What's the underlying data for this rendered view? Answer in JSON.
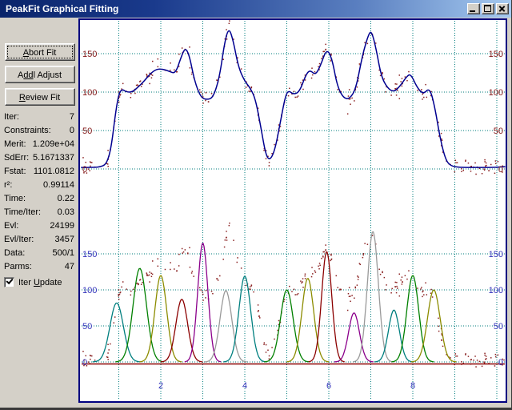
{
  "window": {
    "title": "PeakFit Graphical Fitting",
    "controls": [
      "minimize",
      "maximize",
      "close"
    ]
  },
  "toolbar": {
    "abort": {
      "pre": "",
      "mn": "A",
      "post": "bort Fit"
    },
    "addl": {
      "pre": "A",
      "mn": "dd",
      "post": "l Adjust"
    },
    "review": {
      "pre": "",
      "mn": "R",
      "post": "eview Fit"
    }
  },
  "stats": {
    "rows": [
      {
        "label": "Iter:",
        "value": "7"
      },
      {
        "label": "Constraints:",
        "value": "0"
      },
      {
        "label": "Merit:",
        "value": "1.209e+04"
      },
      {
        "label": "SdErr:",
        "value": "5.1671337"
      },
      {
        "label": "Fstat:",
        "value": "1101.0812"
      },
      {
        "label": "r²:",
        "value": "0.99114"
      },
      {
        "label": "Time:",
        "value": "0.22"
      },
      {
        "label": "Time/Iter:",
        "value": "0.03"
      },
      {
        "label": "Evl:",
        "value": "24199"
      },
      {
        "label": "Evl/Iter:",
        "value": "3457"
      },
      {
        "label": "Data:",
        "value": "500/1"
      },
      {
        "label": "Parms:",
        "value": "47"
      }
    ]
  },
  "iter_update": {
    "pre": "Iter ",
    "mn": "U",
    "post": "pdate",
    "checked": true
  },
  "chart_data": {
    "type": "line",
    "x_axis": {
      "min": 0.1,
      "max": 10.2,
      "gridlines": [
        1,
        2,
        3,
        4,
        5,
        6,
        7,
        8,
        9,
        10
      ],
      "tick_labels": [
        {
          "x": 2,
          "label": "2"
        },
        {
          "x": 4,
          "label": "4"
        },
        {
          "x": 6,
          "label": "6"
        },
        {
          "x": 8,
          "label": "8"
        }
      ],
      "label_color": "#3333bb"
    },
    "grid_color": "#007c7c",
    "scatter": {
      "color": "#8b2222",
      "n_points": 290,
      "noise_sd": 5.2,
      "seed": 11
    },
    "panels": [
      {
        "name": "data-and-fit",
        "yticks": [
          0,
          50,
          100,
          150
        ],
        "ylim": [
          -10,
          200
        ],
        "tick_color": "#801515",
        "curve_color": "#000090",
        "fitted_curve": [
          [
            0.1,
            2
          ],
          [
            0.4,
            2
          ],
          [
            0.6,
            3
          ],
          [
            0.72,
            8
          ],
          [
            0.82,
            28
          ],
          [
            0.92,
            72
          ],
          [
            1.0,
            98
          ],
          [
            1.08,
            104
          ],
          [
            1.18,
            100
          ],
          [
            1.32,
            100
          ],
          [
            1.45,
            106
          ],
          [
            1.6,
            114
          ],
          [
            1.75,
            124
          ],
          [
            1.9,
            130
          ],
          [
            2.05,
            130
          ],
          [
            2.2,
            127
          ],
          [
            2.35,
            124
          ],
          [
            2.48,
            145
          ],
          [
            2.58,
            158
          ],
          [
            2.68,
            148
          ],
          [
            2.8,
            115
          ],
          [
            2.95,
            93
          ],
          [
            3.1,
            90
          ],
          [
            3.25,
            93
          ],
          [
            3.4,
            120
          ],
          [
            3.52,
            165
          ],
          [
            3.62,
            184
          ],
          [
            3.72,
            168
          ],
          [
            3.85,
            132
          ],
          [
            4.0,
            114
          ],
          [
            4.12,
            106
          ],
          [
            4.25,
            92
          ],
          [
            4.38,
            55
          ],
          [
            4.5,
            18
          ],
          [
            4.6,
            11
          ],
          [
            4.72,
            25
          ],
          [
            4.85,
            62
          ],
          [
            4.97,
            96
          ],
          [
            5.05,
            102
          ],
          [
            5.15,
            97
          ],
          [
            5.3,
            100
          ],
          [
            5.45,
            122
          ],
          [
            5.55,
            129
          ],
          [
            5.68,
            122
          ],
          [
            5.8,
            134
          ],
          [
            5.95,
            157
          ],
          [
            6.08,
            143
          ],
          [
            6.2,
            108
          ],
          [
            6.35,
            92
          ],
          [
            6.5,
            91
          ],
          [
            6.65,
            105
          ],
          [
            6.8,
            148
          ],
          [
            6.95,
            176
          ],
          [
            7.02,
            179
          ],
          [
            7.12,
            158
          ],
          [
            7.25,
            120
          ],
          [
            7.4,
            105
          ],
          [
            7.55,
            100
          ],
          [
            7.7,
            108
          ],
          [
            7.85,
            120
          ],
          [
            7.95,
            124
          ],
          [
            8.1,
            106
          ],
          [
            8.25,
            97
          ],
          [
            8.4,
            106
          ],
          [
            8.52,
            82
          ],
          [
            8.65,
            40
          ],
          [
            8.78,
            12
          ],
          [
            8.9,
            4
          ],
          [
            9.1,
            2
          ],
          [
            9.5,
            2
          ],
          [
            9.9,
            2
          ],
          [
            10.2,
            3
          ]
        ]
      },
      {
        "name": "peak-components",
        "yticks": [
          0,
          50,
          100,
          150
        ],
        "ylim": [
          -10,
          200
        ],
        "tick_color": "#3333bb",
        "baseline_color": "#8b0000",
        "peaks": [
          {
            "center": 0.95,
            "amplitude": 82,
            "sigma": 0.16,
            "color": "#007f7f"
          },
          {
            "center": 1.5,
            "amplitude": 130,
            "sigma": 0.16,
            "color": "#008000"
          },
          {
            "center": 2.0,
            "amplitude": 120,
            "sigma": 0.14,
            "color": "#8c8c00"
          },
          {
            "center": 2.5,
            "amplitude": 87,
            "sigma": 0.14,
            "color": "#8b0000"
          },
          {
            "center": 3.0,
            "amplitude": 165,
            "sigma": 0.12,
            "color": "#8b008b"
          },
          {
            "center": 3.55,
            "amplitude": 99,
            "sigma": 0.14,
            "color": "#9a9a9a"
          },
          {
            "center": 4.0,
            "amplitude": 119,
            "sigma": 0.14,
            "color": "#007f7f"
          },
          {
            "center": 5.0,
            "amplitude": 100,
            "sigma": 0.15,
            "color": "#008000"
          },
          {
            "center": 5.5,
            "amplitude": 116,
            "sigma": 0.14,
            "color": "#8c8c00"
          },
          {
            "center": 5.95,
            "amplitude": 153,
            "sigma": 0.12,
            "color": "#8b0000"
          },
          {
            "center": 6.6,
            "amplitude": 68,
            "sigma": 0.13,
            "color": "#8b008b"
          },
          {
            "center": 7.05,
            "amplitude": 181,
            "sigma": 0.13,
            "color": "#9a9a9a"
          },
          {
            "center": 7.55,
            "amplitude": 72,
            "sigma": 0.13,
            "color": "#007f7f"
          },
          {
            "center": 8.0,
            "amplitude": 120,
            "sigma": 0.14,
            "color": "#008000"
          },
          {
            "center": 8.5,
            "amplitude": 100,
            "sigma": 0.15,
            "color": "#8c8c00"
          }
        ]
      }
    ]
  }
}
